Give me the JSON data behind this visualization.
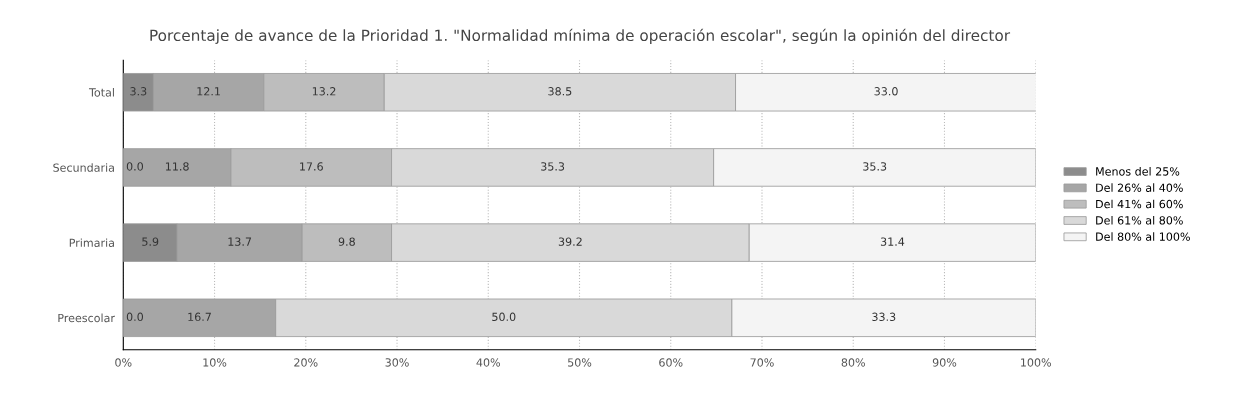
{
  "chart_data": {
    "type": "bar",
    "orientation": "horizontal",
    "stacked": true,
    "title": "Porcentaje de avance de la Prioridad 1. \"Normalidad mínima de operación escolar\", según la opinión del director",
    "categories": [
      "Total",
      "Secundaria",
      "Primaria",
      "Preescolar"
    ],
    "series": [
      {
        "name": "Menos del 25%",
        "color": "#8c8c8c",
        "values": [
          3.3,
          0.0,
          5.9,
          0.0
        ],
        "value_labels": [
          "3.3",
          "0.0",
          "5.9",
          "0.0"
        ]
      },
      {
        "name": "Del 26% al 40%",
        "color": "#a6a6a6",
        "values": [
          12.1,
          11.8,
          13.7,
          16.7
        ],
        "value_labels": [
          "12.1",
          "11.8",
          "13.7",
          "16.7"
        ]
      },
      {
        "name": "Del 41% al 60%",
        "color": "#bdbdbd",
        "values": [
          13.2,
          17.6,
          9.8,
          0.0
        ],
        "value_labels": [
          "13.2",
          "17.6",
          "9.8",
          null
        ]
      },
      {
        "name": "Del 61% al 80%",
        "color": "#d9d9d9",
        "values": [
          38.5,
          35.3,
          39.2,
          50.0
        ],
        "value_labels": [
          "38.5",
          "35.3",
          "39.2",
          "50.0"
        ]
      },
      {
        "name": "Del 80% al 100%",
        "color": "#f4f4f4",
        "values": [
          33.0,
          35.3,
          31.4,
          33.3
        ],
        "value_labels": [
          "33.0",
          "35.3",
          "31.4",
          "33.3"
        ]
      }
    ],
    "xlim": [
      0,
      100
    ],
    "xticks": [
      {
        "value": 0,
        "label": "0%"
      },
      {
        "value": 10,
        "label": "10%"
      },
      {
        "value": 20,
        "label": "20%"
      },
      {
        "value": 30,
        "label": "30%"
      },
      {
        "value": 40,
        "label": "40%"
      },
      {
        "value": 50,
        "label": "50%"
      },
      {
        "value": 60,
        "label": "60%"
      },
      {
        "value": 70,
        "label": "70%"
      },
      {
        "value": 80,
        "label": "80%"
      },
      {
        "value": 90,
        "label": "90%"
      },
      {
        "value": 100,
        "label": "100%"
      }
    ],
    "grid": "x",
    "legend": "right"
  }
}
